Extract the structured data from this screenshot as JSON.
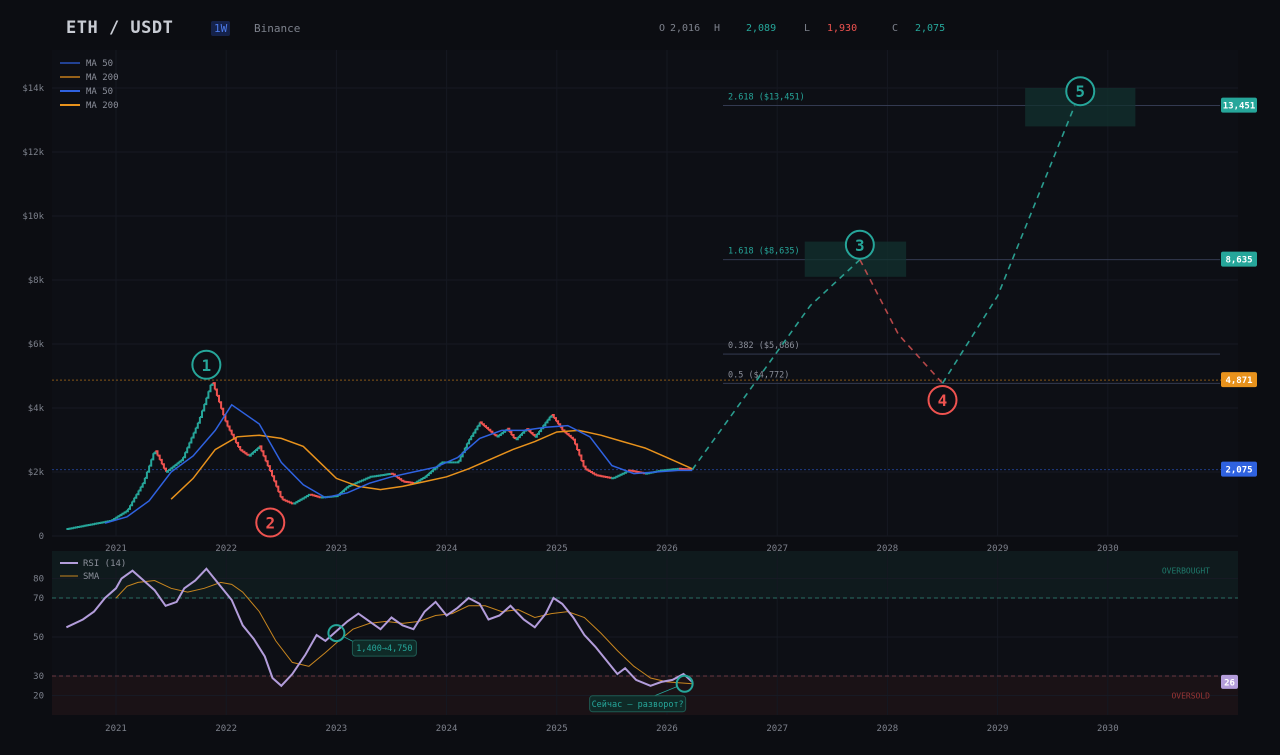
{
  "header": {
    "symbol": "ETH / USDT",
    "timeframe": "1W",
    "exchange": "Binance",
    "open_label": "O",
    "open": "2,016",
    "high_label": "H",
    "high": "2,089",
    "low_label": "L",
    "low": "1,930",
    "close_label": "C",
    "close": "2,075"
  },
  "colors": {
    "bg": "#0c0d12",
    "up": "#26a69a",
    "down": "#ef5350",
    "ma50": "#2f62e0",
    "ma200": "#e8921c",
    "rsi": "#b39ddb",
    "wave": "#2a9d8f",
    "wave_red": "#e05555"
  },
  "chart_data": [
    {
      "type": "line",
      "title": "",
      "x_ticks": [
        "2021",
        "2022",
        "2023",
        "2024",
        "2025",
        "2026",
        "2027",
        "2028",
        "2029",
        "2030"
      ],
      "y_ticks": [
        "0",
        "$2k",
        "$4k",
        "$6k",
        "$8k",
        "$10k",
        "$12k",
        "$14k"
      ],
      "ylim": [
        0,
        15200
      ],
      "xlim": [
        2020.5,
        2031.1
      ],
      "legend": {
        "position": "top-left",
        "entries": [
          "MA 50",
          "MA 200",
          "MA 50",
          "MA 200"
        ]
      },
      "price_anchors": [
        [
          2020.55,
          220
        ],
        [
          2020.8,
          380
        ],
        [
          2020.95,
          480
        ],
        [
          2021.1,
          800
        ],
        [
          2021.25,
          1700
        ],
        [
          2021.35,
          2700
        ],
        [
          2021.45,
          2000
        ],
        [
          2021.6,
          2400
        ],
        [
          2021.75,
          3600
        ],
        [
          2021.87,
          4850
        ],
        [
          2022.0,
          3500
        ],
        [
          2022.12,
          2700
        ],
        [
          2022.2,
          2500
        ],
        [
          2022.3,
          2800
        ],
        [
          2022.4,
          2000
        ],
        [
          2022.5,
          1150
        ],
        [
          2022.6,
          1000
        ],
        [
          2022.75,
          1300
        ],
        [
          2022.85,
          1200
        ],
        [
          2023.0,
          1250
        ],
        [
          2023.1,
          1550
        ],
        [
          2023.3,
          1850
        ],
        [
          2023.5,
          1950
        ],
        [
          2023.6,
          1700
        ],
        [
          2023.7,
          1650
        ],
        [
          2023.8,
          1850
        ],
        [
          2023.95,
          2300
        ],
        [
          2024.1,
          2300
        ],
        [
          2024.2,
          3000
        ],
        [
          2024.3,
          3550
        ],
        [
          2024.45,
          3100
        ],
        [
          2024.55,
          3350
        ],
        [
          2024.62,
          3000
        ],
        [
          2024.72,
          3350
        ],
        [
          2024.8,
          3100
        ],
        [
          2024.95,
          3800
        ],
        [
          2025.05,
          3300
        ],
        [
          2025.15,
          3000
        ],
        [
          2025.25,
          2100
        ],
        [
          2025.35,
          1900
        ],
        [
          2025.5,
          1800
        ],
        [
          2025.65,
          2050
        ],
        [
          2025.8,
          1950
        ],
        [
          2025.95,
          2050
        ],
        [
          2026.1,
          2100
        ],
        [
          2026.23,
          2075
        ]
      ],
      "ma50": [
        [
          2020.9,
          400
        ],
        [
          2021.1,
          600
        ],
        [
          2021.3,
          1100
        ],
        [
          2021.5,
          2000
        ],
        [
          2021.7,
          2500
        ],
        [
          2021.9,
          3300
        ],
        [
          2022.05,
          4100
        ],
        [
          2022.3,
          3500
        ],
        [
          2022.5,
          2300
        ],
        [
          2022.7,
          1600
        ],
        [
          2022.9,
          1200
        ],
        [
          2023.1,
          1350
        ],
        [
          2023.3,
          1650
        ],
        [
          2023.5,
          1850
        ],
        [
          2023.7,
          2000
        ],
        [
          2023.9,
          2150
        ],
        [
          2024.1,
          2450
        ],
        [
          2024.3,
          3050
        ],
        [
          2024.5,
          3300
        ],
        [
          2024.7,
          3300
        ],
        [
          2024.9,
          3400
        ],
        [
          2025.1,
          3450
        ],
        [
          2025.3,
          3100
        ],
        [
          2025.5,
          2200
        ],
        [
          2025.7,
          1950
        ],
        [
          2025.9,
          2000
        ],
        [
          2026.1,
          2050
        ],
        [
          2026.23,
          2050
        ]
      ],
      "ma200": [
        [
          2021.5,
          1150
        ],
        [
          2021.7,
          1800
        ],
        [
          2021.9,
          2700
        ],
        [
          2022.1,
          3100
        ],
        [
          2022.3,
          3150
        ],
        [
          2022.5,
          3050
        ],
        [
          2022.7,
          2800
        ],
        [
          2022.85,
          2300
        ],
        [
          2023.0,
          1800
        ],
        [
          2023.2,
          1550
        ],
        [
          2023.4,
          1450
        ],
        [
          2023.6,
          1550
        ],
        [
          2023.8,
          1700
        ],
        [
          2024.0,
          1850
        ],
        [
          2024.2,
          2100
        ],
        [
          2024.4,
          2400
        ],
        [
          2024.6,
          2700
        ],
        [
          2024.8,
          2950
        ],
        [
          2025.0,
          3250
        ],
        [
          2025.2,
          3300
        ],
        [
          2025.4,
          3150
        ],
        [
          2025.6,
          2950
        ],
        [
          2025.8,
          2750
        ],
        [
          2026.0,
          2450
        ],
        [
          2026.23,
          2100
        ]
      ],
      "projection": [
        [
          2026.23,
          2075
        ],
        [
          2026.8,
          4800
        ],
        [
          2027.3,
          7200
        ],
        [
          2027.75,
          8635
        ],
        [
          2028.1,
          6300
        ],
        [
          2028.5,
          4771
        ],
        [
          2029.0,
          7500
        ],
        [
          2029.7,
          13451
        ]
      ],
      "fib_levels": [
        {
          "label": "2.618  ($13,451)",
          "value": 13451
        },
        {
          "label": "1.618  ($8,635)",
          "value": 8635
        },
        {
          "label": "0.382  ($5,686)",
          "value": 5686
        },
        {
          "label": "0.5  ($4,772)",
          "value": 4772
        }
      ],
      "horizontal_lines": [
        {
          "value": 4871,
          "tag": "4,871",
          "color": "#e8921c"
        },
        {
          "value": 2075,
          "tag": "2,075",
          "color": "#2f62e0"
        }
      ],
      "right_tags": [
        {
          "value": 13451,
          "text": "13,451",
          "color": "#26a69a"
        },
        {
          "value": 8635,
          "text": "8,635",
          "color": "#26a69a"
        },
        {
          "value": 4871,
          "text": "4,871",
          "color": "#e8921c"
        },
        {
          "value": 2075,
          "text": "2,075",
          "color": "#2f62e0"
        }
      ],
      "target_boxes": [
        {
          "x0": 2027.25,
          "x1": 2028.17,
          "y0": 8100,
          "y1": 9200
        },
        {
          "x0": 2029.25,
          "x1": 2030.25,
          "y0": 12800,
          "y1": 14000
        }
      ],
      "wave_labels": [
        {
          "text": "1",
          "x": 2021.82,
          "y": 5350,
          "color": "#26a69a"
        },
        {
          "text": "2",
          "x": 2022.4,
          "y": 420,
          "color": "#ef5350"
        },
        {
          "text": "3",
          "x": 2027.75,
          "y": 9100,
          "color": "#26a69a"
        },
        {
          "text": "4",
          "x": 2028.5,
          "y": 4250,
          "color": "#ef5350"
        },
        {
          "text": "5",
          "x": 2029.75,
          "y": 13900,
          "color": "#26a69a"
        }
      ]
    },
    {
      "type": "line",
      "title": "",
      "y_ticks": [
        "20",
        "30",
        "50",
        "70",
        "80"
      ],
      "ylim": [
        10,
        94
      ],
      "overbought_label": "OVERBOUGHT",
      "oversold_label": "OVERSOLD",
      "overbought": 70,
      "oversold": 30,
      "legend": {
        "position": "top-left",
        "entries": [
          "RSI (14)",
          "SMA"
        ]
      },
      "rsi": [
        [
          2020.55,
          55
        ],
        [
          2020.7,
          59
        ],
        [
          2020.8,
          63
        ],
        [
          2020.9,
          70
        ],
        [
          2021.0,
          75
        ],
        [
          2021.05,
          80
        ],
        [
          2021.15,
          84
        ],
        [
          2021.25,
          79
        ],
        [
          2021.35,
          74
        ],
        [
          2021.45,
          66
        ],
        [
          2021.55,
          68
        ],
        [
          2021.62,
          75
        ],
        [
          2021.72,
          79
        ],
        [
          2021.82,
          85
        ],
        [
          2021.92,
          78
        ],
        [
          2022.05,
          69
        ],
        [
          2022.15,
          56
        ],
        [
          2022.25,
          49
        ],
        [
          2022.35,
          40
        ],
        [
          2022.42,
          29
        ],
        [
          2022.5,
          25
        ],
        [
          2022.6,
          31
        ],
        [
          2022.72,
          41
        ],
        [
          2022.82,
          51
        ],
        [
          2022.9,
          48
        ],
        [
          2023.0,
          53
        ],
        [
          2023.1,
          58
        ],
        [
          2023.2,
          62
        ],
        [
          2023.3,
          58
        ],
        [
          2023.4,
          54
        ],
        [
          2023.5,
          60
        ],
        [
          2023.6,
          56
        ],
        [
          2023.7,
          54
        ],
        [
          2023.8,
          63
        ],
        [
          2023.9,
          68
        ],
        [
          2024.0,
          61
        ],
        [
          2024.1,
          65
        ],
        [
          2024.2,
          70
        ],
        [
          2024.3,
          67
        ],
        [
          2024.38,
          59
        ],
        [
          2024.48,
          61
        ],
        [
          2024.58,
          66
        ],
        [
          2024.7,
          59
        ],
        [
          2024.8,
          55
        ],
        [
          2024.9,
          62
        ],
        [
          2024.97,
          70
        ],
        [
          2025.05,
          67
        ],
        [
          2025.15,
          60
        ],
        [
          2025.25,
          51
        ],
        [
          2025.35,
          45
        ],
        [
          2025.45,
          38
        ],
        [
          2025.55,
          31
        ],
        [
          2025.62,
          34
        ],
        [
          2025.72,
          28
        ],
        [
          2025.85,
          25
        ],
        [
          2025.95,
          27
        ],
        [
          2026.05,
          28
        ],
        [
          2026.15,
          31
        ],
        [
          2026.23,
          27
        ]
      ],
      "sma": [
        [
          2021.0,
          70
        ],
        [
          2021.1,
          76
        ],
        [
          2021.2,
          78
        ],
        [
          2021.35,
          79
        ],
        [
          2021.5,
          75
        ],
        [
          2021.65,
          73
        ],
        [
          2021.8,
          75
        ],
        [
          2021.95,
          78
        ],
        [
          2022.05,
          77
        ],
        [
          2022.15,
          73
        ],
        [
          2022.3,
          63
        ],
        [
          2022.45,
          48
        ],
        [
          2022.6,
          37
        ],
        [
          2022.75,
          35
        ],
        [
          2022.9,
          42
        ],
        [
          2023.0,
          47
        ],
        [
          2023.15,
          54
        ],
        [
          2023.3,
          57
        ],
        [
          2023.45,
          58
        ],
        [
          2023.6,
          57
        ],
        [
          2023.75,
          58
        ],
        [
          2023.9,
          61
        ],
        [
          2024.05,
          62
        ],
        [
          2024.2,
          66
        ],
        [
          2024.35,
          66
        ],
        [
          2024.5,
          63
        ],
        [
          2024.65,
          64
        ],
        [
          2024.8,
          60
        ],
        [
          2024.95,
          62
        ],
        [
          2025.1,
          63
        ],
        [
          2025.25,
          60
        ],
        [
          2025.4,
          52
        ],
        [
          2025.55,
          43
        ],
        [
          2025.7,
          35
        ],
        [
          2025.85,
          29
        ],
        [
          2026.0,
          27
        ],
        [
          2026.23,
          26
        ]
      ],
      "tag": "26",
      "annotations": [
        {
          "text": "1,400→4,750",
          "x": 2023.0,
          "y": 52,
          "color": "#26a69a"
        },
        {
          "text": "Сейчас — разворот?",
          "x": 2026.16,
          "y": 26,
          "color": "#26a69a"
        }
      ]
    }
  ]
}
